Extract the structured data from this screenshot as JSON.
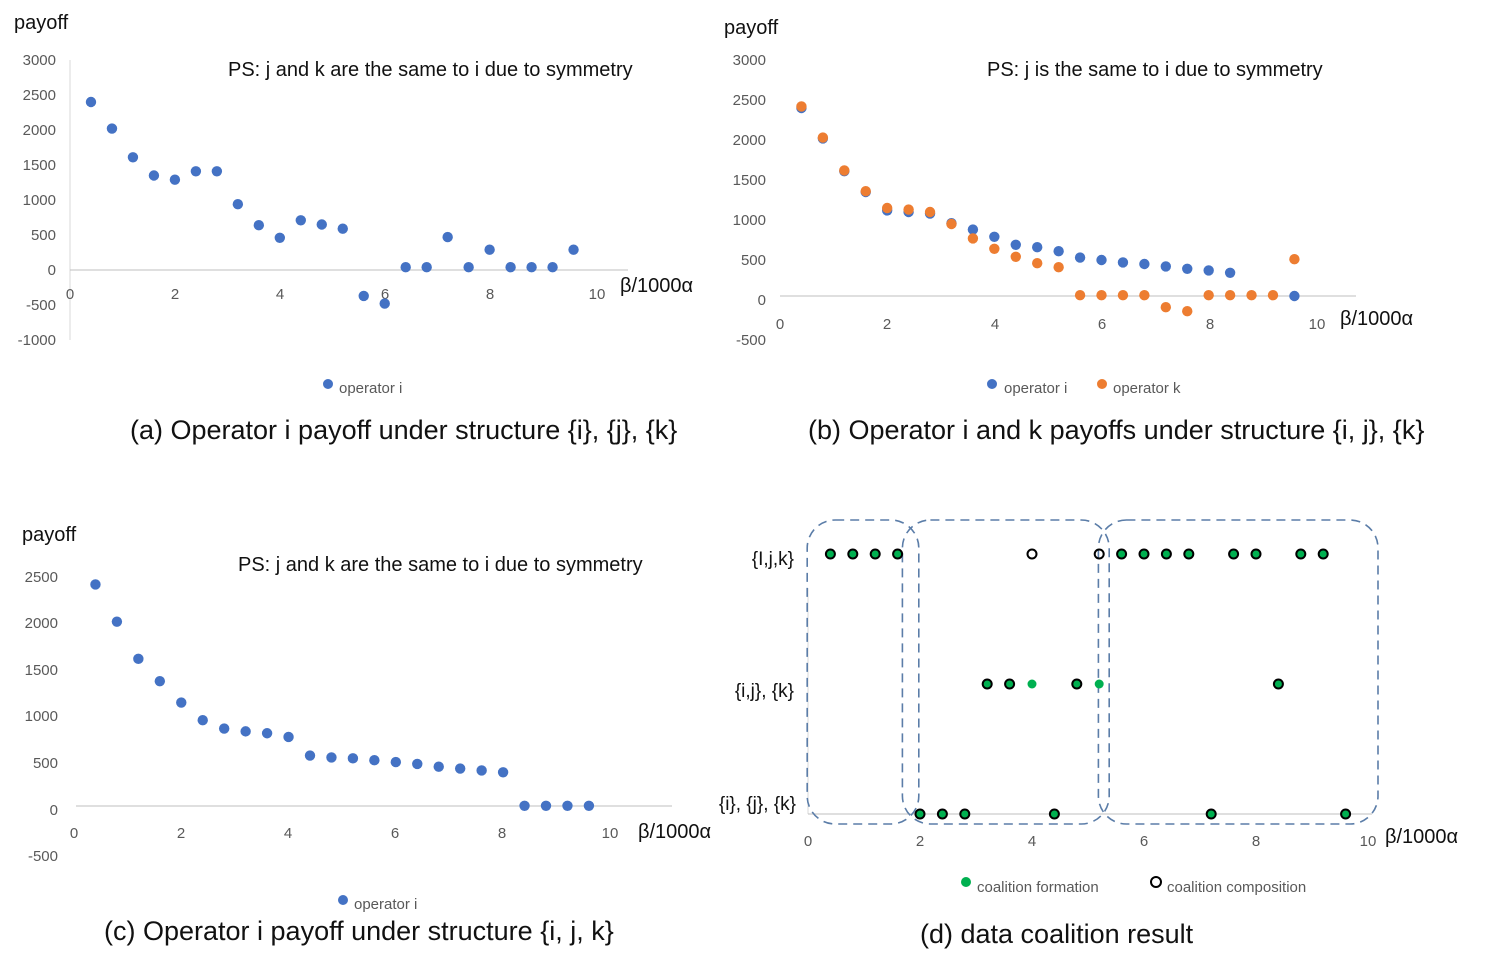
{
  "colors": {
    "blue": "#4472C4",
    "orange": "#ED7D31",
    "green": "#00B050",
    "axis": "#BFBFBF",
    "box": "#5B7DA8"
  },
  "chart_data": [
    {
      "id": "a",
      "type": "scatter",
      "title": "",
      "ylabel": "payoff",
      "xlabel": "β/1000α",
      "note": "PS: j and k are the same to i due to symmetry",
      "caption": "(a)   Operator i payoff under structure {i}, {j}, {k}",
      "xlim": [
        0,
        10.6
      ],
      "ylim": [
        -1000,
        3000
      ],
      "xticks": [
        "0",
        "2",
        "4",
        "6",
        "8",
        "10"
      ],
      "yticks": [
        "3000",
        "2500",
        "2000",
        "1500",
        "1000",
        "500",
        "0",
        "-500",
        "-1000"
      ],
      "legend_position": "bottom",
      "series": [
        {
          "name": "operator i",
          "color": "#4472C4",
          "x": [
            0.4,
            0.8,
            1.2,
            1.6,
            2.0,
            2.4,
            2.8,
            3.2,
            3.6,
            4.0,
            4.4,
            4.8,
            5.2,
            5.6,
            6.0,
            6.4,
            6.8,
            7.2,
            7.6,
            8.0,
            8.4,
            8.8,
            9.2,
            9.6
          ],
          "y": [
            2400,
            2020,
            1610,
            1350,
            1290,
            1410,
            1410,
            940,
            640,
            460,
            710,
            650,
            590,
            -370,
            -480,
            40,
            40,
            470,
            40,
            290,
            40,
            40,
            40,
            290
          ]
        }
      ]
    },
    {
      "id": "b",
      "type": "scatter",
      "title": "",
      "ylabel": "payoff",
      "xlabel": "β/1000α",
      "note": "PS: j  is the same to i due to symmetry",
      "caption": "(b) Operator i and k payoffs under structure {i, j}, {k}",
      "xlim": [
        0,
        10.6
      ],
      "ylim": [
        -500,
        3000
      ],
      "xticks": [
        "0",
        "2",
        "4",
        "6",
        "8",
        "10"
      ],
      "yticks": [
        "3000",
        "2500",
        "2000",
        "1500",
        "1000",
        "500",
        "0",
        "-500"
      ],
      "legend_position": "bottom",
      "series": [
        {
          "name": "operator i",
          "color": "#4472C4",
          "x": [
            0.4,
            0.8,
            1.2,
            1.6,
            2.0,
            2.4,
            2.8,
            3.2,
            3.6,
            4.0,
            4.4,
            4.8,
            5.2,
            5.6,
            6.0,
            6.4,
            6.8,
            7.2,
            7.6,
            8.0,
            8.4,
            9.6
          ],
          "y": [
            2400,
            2020,
            1610,
            1350,
            1120,
            1100,
            1080,
            960,
            880,
            790,
            690,
            660,
            610,
            530,
            500,
            470,
            450,
            420,
            390,
            370,
            340,
            50
          ]
        },
        {
          "name": "operator k",
          "color": "#ED7D31",
          "x": [
            0.4,
            0.8,
            1.2,
            1.6,
            2.0,
            2.4,
            2.8,
            3.2,
            3.6,
            4.0,
            4.4,
            4.8,
            5.2,
            5.6,
            6.0,
            6.4,
            6.8,
            7.2,
            7.6,
            8.0,
            8.4,
            8.8,
            9.2,
            9.6
          ],
          "y": [
            2420,
            2030,
            1620,
            1360,
            1150,
            1130,
            1100,
            950,
            770,
            640,
            540,
            460,
            410,
            60,
            60,
            60,
            60,
            -90,
            -140,
            60,
            60,
            60,
            60,
            510
          ]
        }
      ]
    },
    {
      "id": "c",
      "type": "scatter",
      "title": "",
      "ylabel": "payoff",
      "xlabel": "β/1000α",
      "note": "PS: j and k are the same to i due to symmetry",
      "caption": "(c) Operator i payoff under structure {i, j, k}",
      "xlim": [
        0,
        11
      ],
      "ylim": [
        -500,
        2500
      ],
      "xticks": [
        "0",
        "2",
        "4",
        "6",
        "8",
        "10"
      ],
      "yticks": [
        "2500",
        "2000",
        "1500",
        "1000",
        "500",
        "0",
        "-500"
      ],
      "legend_position": "bottom",
      "series": [
        {
          "name": "operator i",
          "color": "#4472C4",
          "x": [
            0.4,
            0.8,
            1.2,
            1.6,
            2.0,
            2.4,
            2.8,
            3.2,
            3.6,
            4.0,
            4.4,
            4.8,
            5.2,
            5.6,
            6.0,
            6.4,
            6.8,
            7.2,
            7.6,
            8.0,
            8.4,
            8.8,
            9.2,
            9.6
          ],
          "y": [
            2420,
            2020,
            1620,
            1380,
            1150,
            960,
            870,
            840,
            820,
            780,
            580,
            560,
            550,
            530,
            510,
            490,
            460,
            440,
            420,
            400,
            40,
            40,
            40,
            40
          ]
        }
      ]
    },
    {
      "id": "d",
      "type": "scatter",
      "title": "",
      "xlabel": "β/1000α",
      "caption": "(d) data coalition result",
      "xlim": [
        0,
        10.5
      ],
      "categories": [
        "{i}, {j}, {k}",
        "{i,j}, {k}",
        "{I,j,k}"
      ],
      "xticks": [
        "0",
        "2",
        "4",
        "6",
        "8",
        "10"
      ],
      "legend_position": "bottom",
      "series": [
        {
          "name": "coalition formation",
          "color": "#00B050",
          "x": [
            0.4,
            0.8,
            1.2,
            1.6,
            2.0,
            2.4,
            2.8,
            3.2,
            3.6,
            4.0,
            4.4,
            4.8,
            5.2,
            5.6,
            6.0,
            6.4,
            6.8,
            7.2,
            7.6,
            8.0,
            8.4,
            8.8,
            9.2,
            9.6
          ],
          "y": [
            "{I,j,k}",
            "{I,j,k}",
            "{I,j,k}",
            "{I,j,k}",
            "{i}, {j}, {k}",
            "{i}, {j}, {k}",
            "{i}, {j}, {k}",
            "{i,j}, {k}",
            "{i,j}, {k}",
            "{i,j}, {k}",
            "{i}, {j}, {k}",
            "{i,j}, {k}",
            "{i,j}, {k}",
            "{I,j,k}",
            "{I,j,k}",
            "{I,j,k}",
            "{I,j,k}",
            "{i}, {j}, {k}",
            "{I,j,k}",
            "{I,j,k}",
            "{i,j}, {k}",
            "{I,j,k}",
            "{I,j,k}",
            "{i}, {j}, {k}"
          ]
        },
        {
          "name": "coalition composition",
          "color": "#000000",
          "x": [
            0.4,
            0.8,
            1.2,
            1.6,
            2.0,
            2.4,
            2.8,
            3.2,
            3.6,
            4.0,
            4.4,
            4.8,
            5.2,
            5.6,
            6.0,
            6.4,
            6.8,
            7.2,
            7.6,
            8.0,
            8.4,
            8.8,
            9.2,
            9.6
          ],
          "y": [
            "{I,j,k}",
            "{I,j,k}",
            "{I,j,k}",
            "{I,j,k}",
            "{i}, {j}, {k}",
            "{i}, {j}, {k}",
            "{i}, {j}, {k}",
            "{i,j}, {k}",
            "{i,j}, {k}",
            "{I,j,k}",
            "{i}, {j}, {k}",
            "{i,j}, {k}",
            "{I,j,k}",
            "{I,j,k}",
            "{I,j,k}",
            "{I,j,k}",
            "{I,j,k}",
            "{i}, {j}, {k}",
            "{I,j,k}",
            "{I,j,k}",
            "{i,j}, {k}",
            "{I,j,k}",
            "{I,j,k}",
            "{i}, {j}, {k}"
          ]
        }
      ],
      "groups": [
        {
          "x_from": 0.2,
          "x_to": 1.8
        },
        {
          "x_from": 1.9,
          "x_to": 5.2
        },
        {
          "x_from": 5.4,
          "x_to": 10.0
        }
      ]
    }
  ]
}
